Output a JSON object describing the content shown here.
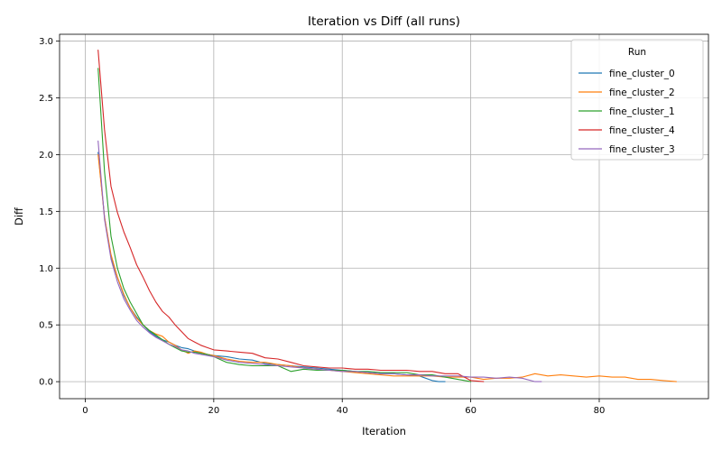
{
  "chart_data": {
    "type": "line",
    "title": "Iteration vs Diff (all runs)",
    "xlabel": "Iteration",
    "ylabel": "Diff",
    "xlim": [
      -4,
      97
    ],
    "ylim": [
      -0.15,
      3.06
    ],
    "x_ticks": [
      "0",
      "20",
      "40",
      "60",
      "80"
    ],
    "y_ticks": [
      "0.0",
      "0.5",
      "1.0",
      "1.5",
      "2.0",
      "2.5",
      "3.0"
    ],
    "grid": true,
    "legend": {
      "title": "Run",
      "position": "top-right"
    },
    "series": [
      {
        "name": "fine_cluster_0",
        "color": "#1f77b4",
        "x": [
          2,
          3,
          4,
          5,
          6,
          7,
          8,
          9,
          10,
          11,
          12,
          13,
          14,
          15,
          16,
          17,
          18,
          19,
          20,
          22,
          24,
          26,
          28,
          30,
          32,
          34,
          36,
          38,
          40,
          42,
          44,
          46,
          48,
          50,
          52,
          54,
          55,
          56
        ],
        "y": [
          2.02,
          1.45,
          1.1,
          0.92,
          0.76,
          0.65,
          0.57,
          0.5,
          0.44,
          0.4,
          0.37,
          0.35,
          0.32,
          0.3,
          0.29,
          0.27,
          0.25,
          0.24,
          0.23,
          0.22,
          0.2,
          0.19,
          0.16,
          0.15,
          0.14,
          0.13,
          0.12,
          0.11,
          0.1,
          0.09,
          0.08,
          0.07,
          0.07,
          0.06,
          0.05,
          0.01,
          0.0,
          0.0
        ]
      },
      {
        "name": "fine_cluster_2",
        "color": "#ff7f0e",
        "x": [
          2,
          3,
          4,
          5,
          6,
          7,
          8,
          9,
          10,
          11,
          12,
          13,
          14,
          15,
          16,
          17,
          18,
          19,
          20,
          22,
          24,
          26,
          28,
          30,
          32,
          34,
          36,
          38,
          40,
          42,
          44,
          46,
          48,
          50,
          52,
          54,
          56,
          58,
          60,
          62,
          64,
          66,
          68,
          70,
          72,
          74,
          76,
          78,
          80,
          82,
          84,
          86,
          88,
          90,
          92
        ],
        "y": [
          2.0,
          1.45,
          1.12,
          0.92,
          0.77,
          0.65,
          0.56,
          0.5,
          0.45,
          0.42,
          0.4,
          0.35,
          0.32,
          0.28,
          0.25,
          0.27,
          0.26,
          0.24,
          0.23,
          0.2,
          0.18,
          0.17,
          0.17,
          0.15,
          0.14,
          0.12,
          0.11,
          0.1,
          0.09,
          0.08,
          0.07,
          0.06,
          0.05,
          0.05,
          0.05,
          0.05,
          0.04,
          0.04,
          0.04,
          0.02,
          0.03,
          0.03,
          0.04,
          0.07,
          0.05,
          0.06,
          0.05,
          0.04,
          0.05,
          0.04,
          0.04,
          0.02,
          0.02,
          0.01,
          0.0
        ]
      },
      {
        "name": "fine_cluster_1",
        "color": "#2ca02c",
        "x": [
          2,
          3,
          4,
          5,
          6,
          7,
          8,
          9,
          10,
          11,
          12,
          13,
          14,
          15,
          16,
          17,
          18,
          19,
          20,
          22,
          24,
          26,
          28,
          30,
          32,
          34,
          36,
          38,
          40,
          42,
          44,
          46,
          48,
          50,
          52,
          54,
          56,
          58,
          60
        ],
        "y": [
          2.76,
          1.85,
          1.28,
          1.0,
          0.82,
          0.7,
          0.6,
          0.5,
          0.45,
          0.41,
          0.37,
          0.33,
          0.3,
          0.27,
          0.26,
          0.26,
          0.25,
          0.24,
          0.22,
          0.17,
          0.15,
          0.14,
          0.14,
          0.14,
          0.09,
          0.11,
          0.1,
          0.1,
          0.1,
          0.09,
          0.09,
          0.08,
          0.08,
          0.08,
          0.06,
          0.06,
          0.04,
          0.02,
          0.0
        ]
      },
      {
        "name": "fine_cluster_4",
        "color": "#d62728",
        "x": [
          2,
          3,
          4,
          5,
          6,
          7,
          8,
          9,
          10,
          11,
          12,
          13,
          14,
          15,
          16,
          17,
          18,
          19,
          20,
          22,
          24,
          26,
          28,
          30,
          32,
          34,
          36,
          38,
          40,
          42,
          44,
          46,
          48,
          50,
          52,
          54,
          56,
          58,
          60,
          62
        ],
        "y": [
          2.92,
          2.22,
          1.72,
          1.49,
          1.32,
          1.18,
          1.03,
          0.92,
          0.8,
          0.7,
          0.62,
          0.57,
          0.5,
          0.44,
          0.38,
          0.35,
          0.32,
          0.3,
          0.28,
          0.27,
          0.26,
          0.25,
          0.21,
          0.2,
          0.17,
          0.14,
          0.13,
          0.12,
          0.12,
          0.11,
          0.11,
          0.1,
          0.1,
          0.1,
          0.09,
          0.09,
          0.07,
          0.07,
          0.01,
          0.0
        ]
      },
      {
        "name": "fine_cluster_3",
        "color": "#9467bd",
        "x": [
          2,
          3,
          4,
          5,
          6,
          7,
          8,
          9,
          10,
          11,
          12,
          13,
          14,
          15,
          16,
          17,
          18,
          19,
          20,
          22,
          24,
          26,
          28,
          30,
          32,
          34,
          36,
          38,
          40,
          42,
          44,
          46,
          48,
          50,
          52,
          54,
          56,
          58,
          60,
          62,
          64,
          66,
          68,
          70,
          71
        ],
        "y": [
          2.12,
          1.43,
          1.08,
          0.88,
          0.73,
          0.63,
          0.54,
          0.48,
          0.43,
          0.39,
          0.36,
          0.33,
          0.31,
          0.28,
          0.27,
          0.25,
          0.24,
          0.23,
          0.22,
          0.19,
          0.17,
          0.16,
          0.15,
          0.14,
          0.13,
          0.12,
          0.11,
          0.1,
          0.09,
          0.09,
          0.08,
          0.07,
          0.07,
          0.06,
          0.06,
          0.05,
          0.05,
          0.05,
          0.04,
          0.04,
          0.03,
          0.04,
          0.03,
          0.0,
          0.0
        ]
      }
    ]
  }
}
